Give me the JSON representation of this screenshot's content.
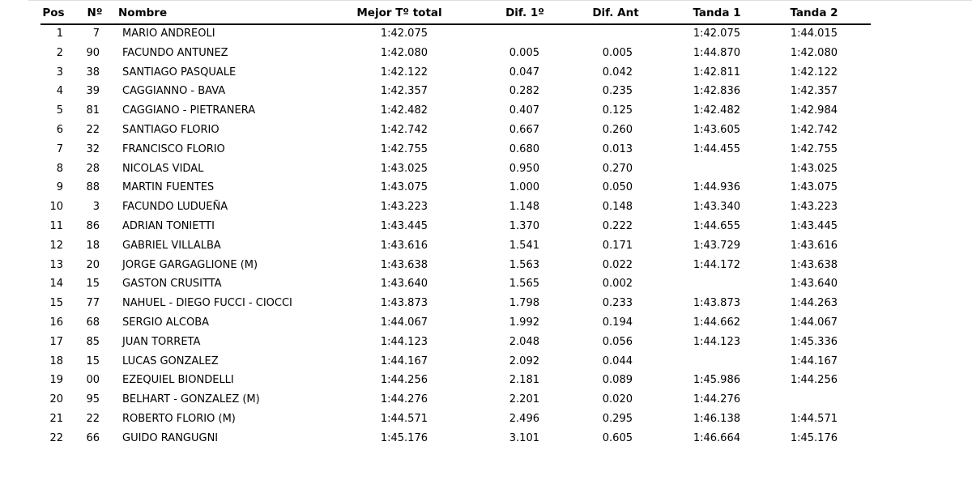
{
  "table": {
    "header": [
      "Pos",
      "Nº",
      "Nombre",
      "Mejor Tº total",
      "Dif. 1º",
      "Dif. Ant",
      "Tanda 1",
      "Tanda 2"
    ],
    "rows": [
      [
        "1",
        "7",
        "MARIO ANDREOLI",
        "1:42.075",
        null,
        null,
        "1:42.075",
        "1:44.015"
      ],
      [
        "2",
        "90",
        "FACUNDO ANTUNEZ",
        "1:42.080",
        "0.005",
        "0.005",
        "1:44.870",
        "1:42.080"
      ],
      [
        "3",
        "38",
        "SANTIAGO PASQUALE",
        "1:42.122",
        "0.047",
        "0.042",
        "1:42.811",
        "1:42.122"
      ],
      [
        "4",
        "39",
        "CAGGIANNO - BAVA",
        "1:42.357",
        "0.282",
        "0.235",
        "1:42.836",
        "1:42.357"
      ],
      [
        "5",
        "81",
        "CAGGIANO - PIETRANERA",
        "1:42.482",
        "0.407",
        "0.125",
        "1:42.482",
        "1:42.984"
      ],
      [
        "6",
        "22",
        "SANTIAGO FLORIO",
        "1:42.742",
        "0.667",
        "0.260",
        "1:43.605",
        "1:42.742"
      ],
      [
        "7",
        "32",
        "FRANCISCO FLORIO",
        "1:42.755",
        "0.680",
        "0.013",
        "1:44.455",
        "1:42.755"
      ],
      [
        "8",
        "28",
        "NICOLAS VIDAL",
        "1:43.025",
        "0.950",
        "0.270",
        null,
        "1:43.025"
      ],
      [
        "9",
        "88",
        "MARTIN FUENTES",
        "1:43.075",
        "1.000",
        "0.050",
        "1:44.936",
        "1:43.075"
      ],
      [
        "10",
        "3",
        "FACUNDO LUDUEÑA",
        "1:43.223",
        "1.148",
        "0.148",
        "1:43.340",
        "1:43.223"
      ],
      [
        "11",
        "86",
        "ADRIAN TONIETTI",
        "1:43.445",
        "1.370",
        "0.222",
        "1:44.655",
        "1:43.445"
      ],
      [
        "12",
        "18",
        "GABRIEL VILLALBA",
        "1:43.616",
        "1.541",
        "0.171",
        "1:43.729",
        "1:43.616"
      ],
      [
        "13",
        "20",
        "JORGE GARGAGLIONE (M)",
        "1:43.638",
        "1.563",
        "0.022",
        "1:44.172",
        "1:43.638"
      ],
      [
        "14",
        "15",
        "GASTON CRUSITTA",
        "1:43.640",
        "1.565",
        "0.002",
        null,
        "1:43.640"
      ],
      [
        "15",
        "77",
        "NAHUEL - DIEGO FUCCI - CIOCCI",
        "1:43.873",
        "1.798",
        "0.233",
        "1:43.873",
        "1:44.263"
      ],
      [
        "16",
        "68",
        "SERGIO ALCOBA",
        "1:44.067",
        "1.992",
        "0.194",
        "1:44.662",
        "1:44.067"
      ],
      [
        "17",
        "85",
        "JUAN TORRETA",
        "1:44.123",
        "2.048",
        "0.056",
        "1:44.123",
        "1:45.336"
      ],
      [
        "18",
        "15",
        "LUCAS GONZALEZ",
        "1:44.167",
        "2.092",
        "0.044",
        null,
        "1:44.167"
      ],
      [
        "19",
        "00",
        "EZEQUIEL BIONDELLI",
        "1:44.256",
        "2.181",
        "0.089",
        "1:45.986",
        "1:44.256"
      ],
      [
        "20",
        "95",
        "BELHART - GONZALEZ (M)",
        "1:44.276",
        "2.201",
        "0.020",
        "1:44.276",
        null
      ],
      [
        "21",
        "22",
        "ROBERTO FLORIO (M)",
        "1:44.571",
        "2.496",
        "0.295",
        "1:46.138",
        "1:44.571"
      ],
      [
        "22",
        "66",
        "GUIDO RANGUGNI",
        "1:45.176",
        "3.101",
        "0.605",
        "1:46.664",
        "1:45.176"
      ]
    ]
  }
}
